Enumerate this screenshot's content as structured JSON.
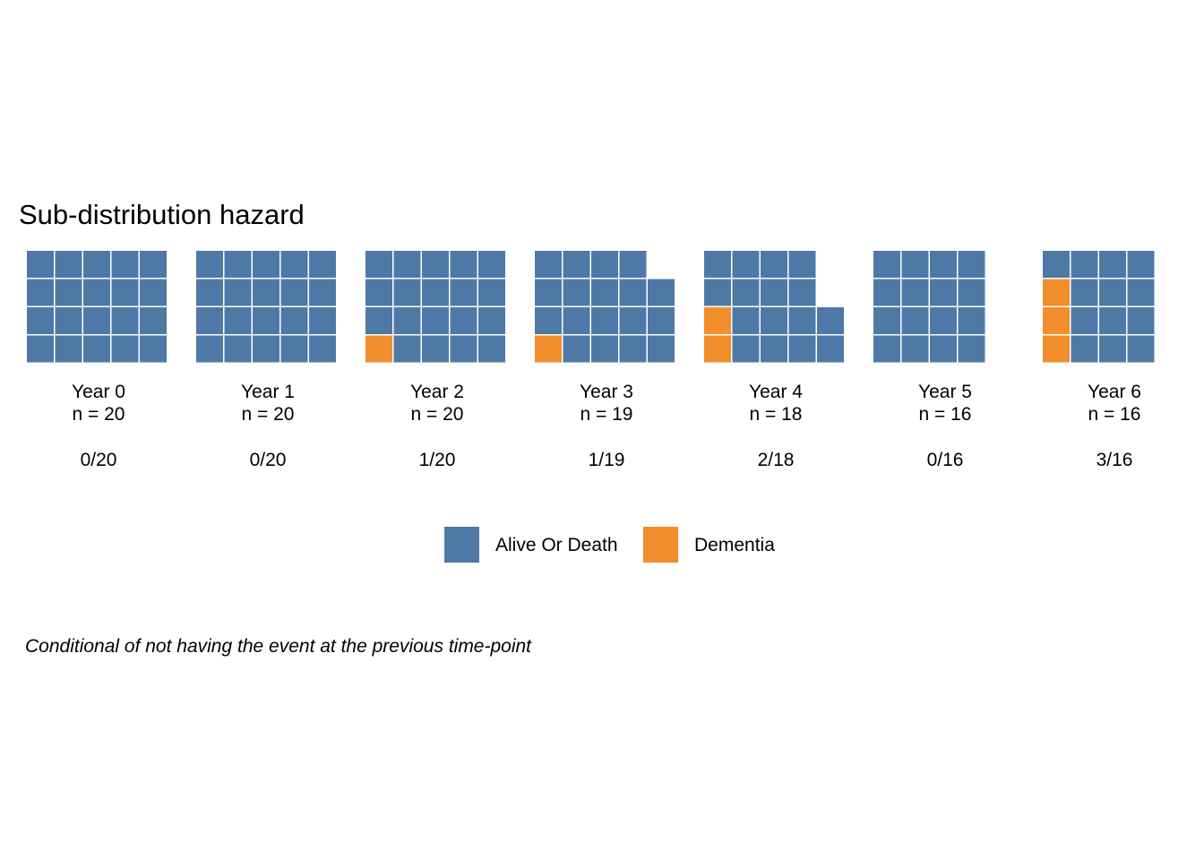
{
  "chart_data": {
    "type": "waffle",
    "title": "Sub-distribution hazard",
    "caption": "Conditional of not having the event at the previous time-point",
    "colors": {
      "Alive Or Death": "#4e79a7",
      "Dementia": "#f28e2b"
    },
    "legend": {
      "placement": "bottom",
      "entries": [
        {
          "name": "Alive Or Death",
          "color": "#4e79a7"
        },
        {
          "name": "Dementia",
          "color": "#f28e2b"
        }
      ]
    },
    "panels": [
      {
        "label": "Year 0",
        "n_label": "n = 20",
        "fraction_label": "0/20",
        "n": 20,
        "events": 0
      },
      {
        "label": "Year 1",
        "n_label": "n = 20",
        "fraction_label": "0/20",
        "n": 20,
        "events": 0
      },
      {
        "label": "Year 2",
        "n_label": "n = 20",
        "fraction_label": "1/20",
        "n": 20,
        "events": 1
      },
      {
        "label": "Year 3",
        "n_label": "n = 19",
        "fraction_label": "1/19",
        "n": 19,
        "events": 1
      },
      {
        "label": "Year 4",
        "n_label": "n = 18",
        "fraction_label": "2/18",
        "n": 18,
        "events": 2
      },
      {
        "label": "Year 5",
        "n_label": "n = 16",
        "fraction_label": "0/16",
        "n": 16,
        "events": 0
      },
      {
        "label": "Year 6",
        "n_label": "n = 16",
        "fraction_label": "3/16",
        "n": 16,
        "events": 3
      }
    ]
  }
}
